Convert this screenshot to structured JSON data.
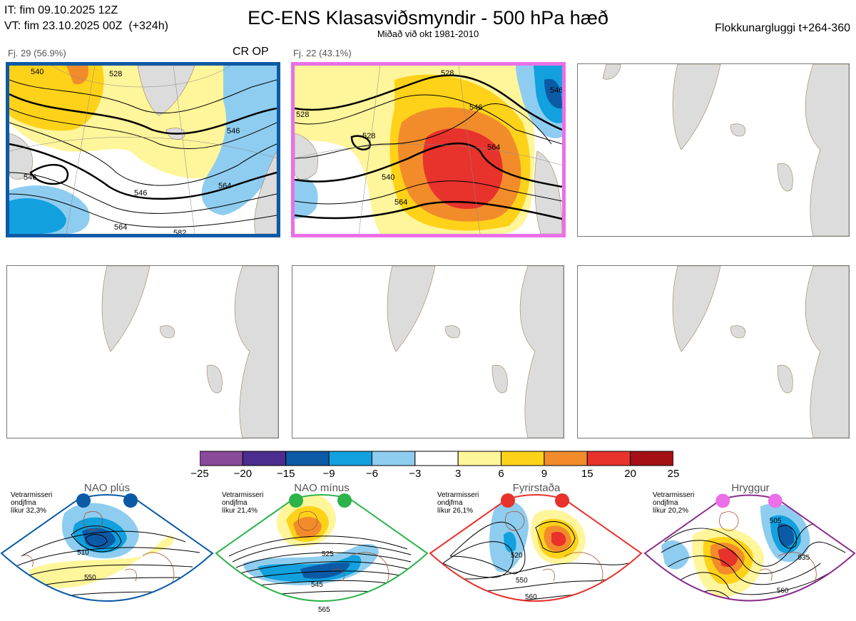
{
  "header": {
    "it_line": "IT: fim 09.10.2025 12Z",
    "vt_line": "VT: fim 23.10.2025 00Z  (+324h)",
    "title": "EC-ENS Klasasviðsmyndir - 500 hPa hæð",
    "subtitle": "Miðað við okt 1981-2010",
    "window": "Flokkunargluggi t+264-360"
  },
  "clusters": [
    {
      "label": "Fj. 29 (56.9%)",
      "tag": "CR OP",
      "highlight_color": "#0b5aa6",
      "contour_labels": [
        "540",
        "528",
        "546",
        "546",
        "546",
        "564",
        "564",
        "582"
      ]
    },
    {
      "label": "Fj. 22 (43.1%)",
      "tag": "",
      "highlight_color": "#ea6fe8",
      "contour_labels": [
        "528",
        "528",
        "540",
        "546",
        "546",
        "564",
        "564",
        "528"
      ]
    }
  ],
  "empty_panels": 4,
  "colorbar": {
    "colors": [
      "#8a4a9a",
      "#4b2d8f",
      "#0b5aa6",
      "#12a0de",
      "#8ecdf0",
      "#ffffff",
      "#fff59a",
      "#ffd21a",
      "#f28c2b",
      "#e8322c",
      "#a51015"
    ],
    "ticks": [
      "−25",
      "−20",
      "−15",
      "−9",
      "−6",
      "−3",
      "3",
      "6",
      "9",
      "15",
      "20",
      "25"
    ]
  },
  "regimes": [
    {
      "name": "NAO plús",
      "meta": "Vetrarmisseri\nondjfma\nlíkur 32,3%",
      "dot_color": "#0b5aa6",
      "frame_color": "#0b5aa6",
      "contours": [
        "510",
        "550"
      ]
    },
    {
      "name": "NAO mínus",
      "meta": "Vetrarmisseri\nondjfma\nlíkur 21,4%",
      "dot_color": "#2cb34a",
      "frame_color": "#2cb34a",
      "contours": [
        "525",
        "545",
        "565"
      ]
    },
    {
      "name": "Fyrirstaða",
      "meta": "Vetrarmisseri\nondjfma\nlíkur 26,1%",
      "dot_color": "#e8322c",
      "frame_color": "#e8322c",
      "contours": [
        "520",
        "550",
        "560"
      ]
    },
    {
      "name": "Hryggur",
      "meta": "Vetrarmisseri\nondjfma\nlíkur 20,2%",
      "dot_color": "#ea6fe8",
      "frame_color": "#8b2c8b",
      "contours": [
        "505",
        "535",
        "560"
      ]
    }
  ]
}
